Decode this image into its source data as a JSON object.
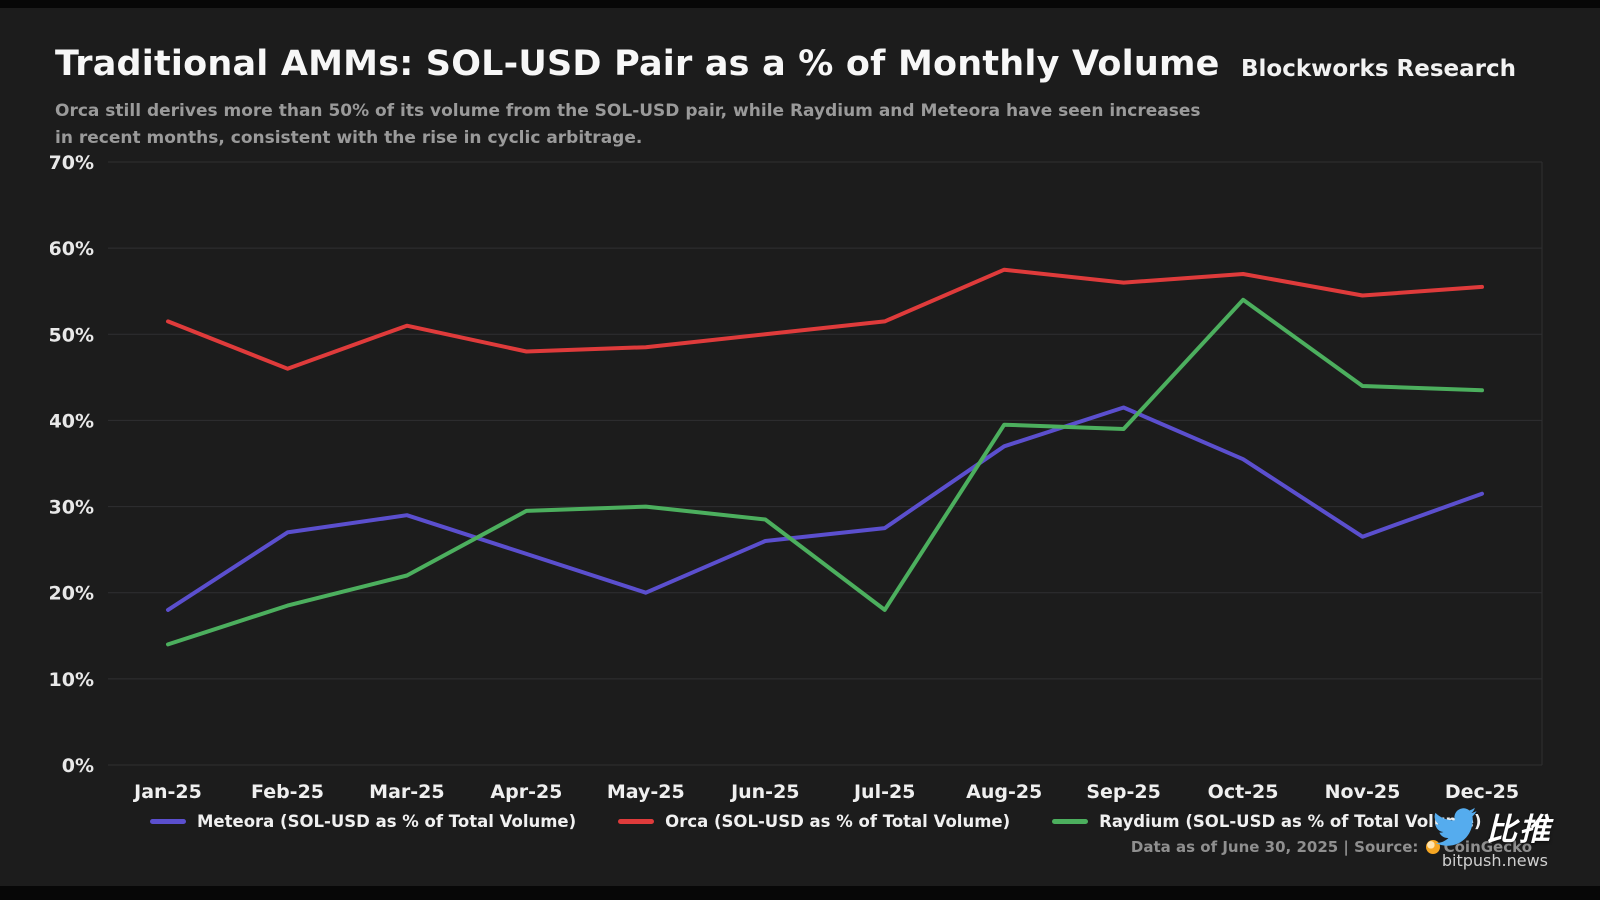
{
  "header": {
    "title": "Traditional AMMs: SOL-USD Pair as a % of Monthly Volume",
    "brand": "Blockworks Research",
    "subtitle_line1": "Orca still derives more than 50% of its volume from the SOL-USD pair, while Raydium and Meteora have seen increases",
    "subtitle_line2": "in recent months, consistent with the rise in cyclic arbitrage."
  },
  "chart_data": {
    "type": "line",
    "title": "Traditional AMMs: SOL-USD Pair as a % of Monthly Volume",
    "categories": [
      "Jan-25",
      "Feb-25",
      "Mar-25",
      "Apr-25",
      "May-25",
      "Jun-25",
      "Jul-25",
      "Aug-25",
      "Sep-25",
      "Oct-25",
      "Nov-25",
      "Dec-25"
    ],
    "series": [
      {
        "name": "Meteora (SOL-USD as % of Total Volume)",
        "color": "#5b4fce",
        "values": [
          18,
          27,
          29,
          24.5,
          20,
          26,
          27.5,
          37,
          41.5,
          35.5,
          26.5,
          31.5
        ]
      },
      {
        "name": "Orca (SOL-USD as % of Total Volume)",
        "color": "#df3b3b",
        "values": [
          51.5,
          46,
          51,
          48,
          48.5,
          50,
          51.5,
          57.5,
          56,
          57,
          54.5,
          55.5
        ]
      },
      {
        "name": "Raydium (SOL-USD as % of Total Volume)",
        "color": "#4caf5e",
        "values": [
          14,
          18.5,
          22,
          29.5,
          30,
          28.5,
          18,
          39.5,
          39,
          54,
          44,
          43.5
        ]
      }
    ],
    "xlabel": "",
    "ylabel": "",
    "ylim": [
      0,
      70
    ],
    "ytick_step": 10,
    "ytick_suffix": "%",
    "grid": true,
    "legend_position": "bottom",
    "background": "#1c1c1c"
  },
  "footer": {
    "source_prefix": "Data as of June 30, 2025 | Source: ",
    "source_name": "CoinGecko",
    "watermark_cn": "比推",
    "watermark_domain": "bitpush.news"
  }
}
